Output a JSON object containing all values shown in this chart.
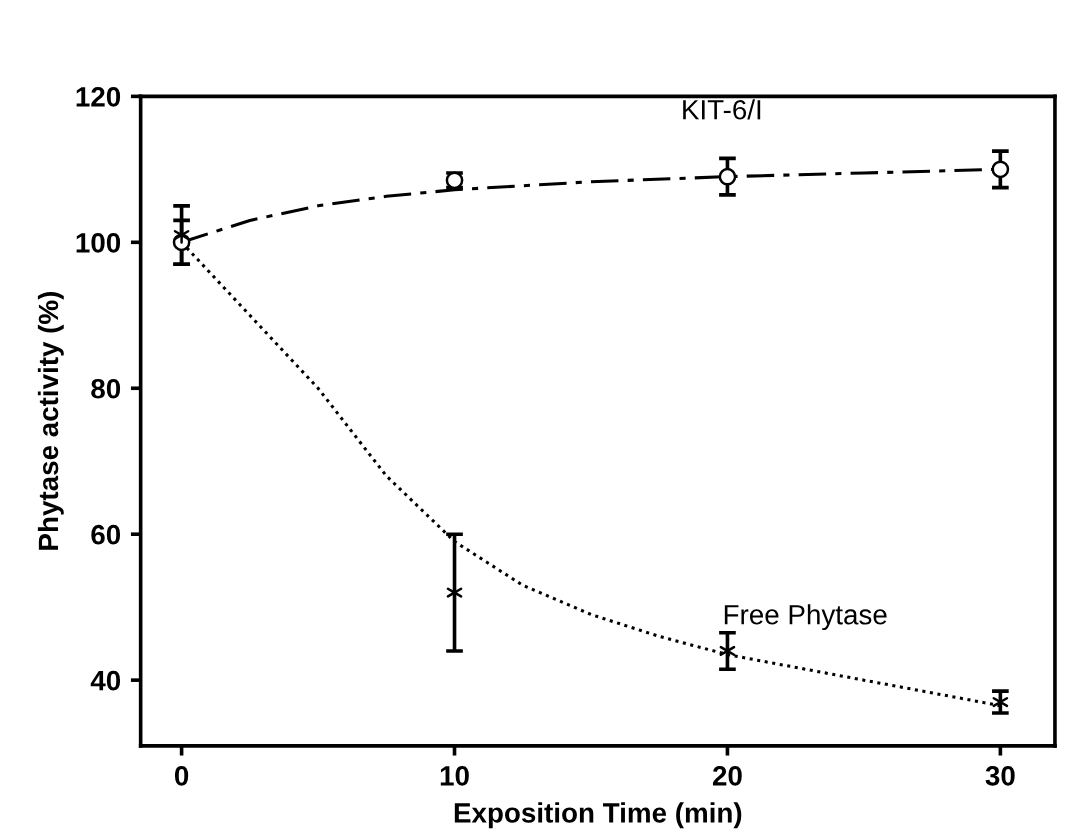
{
  "chart_data": {
    "type": "scatter",
    "xlabel": "Exposition Time (min)",
    "ylabel": "Phytase activity (%)",
    "xlim": [
      -1.5,
      32
    ],
    "ylim": [
      31,
      120
    ],
    "xticks": [
      0,
      10,
      20,
      30
    ],
    "yticks": [
      40,
      60,
      80,
      100,
      120
    ],
    "grid": false,
    "legend": false,
    "series": [
      {
        "name": "KIT-6/I",
        "color": "#000000",
        "marker": "circle",
        "x": [
          0,
          10,
          20,
          30
        ],
        "values": [
          100,
          108.5,
          109,
          110
        ],
        "errors": [
          3,
          1,
          2.5,
          2.5
        ]
      },
      {
        "name": "Free Phytase",
        "color": "#000000",
        "marker": "cross",
        "x": [
          0,
          10,
          20,
          30
        ],
        "values": [
          101,
          52,
          44,
          37
        ],
        "errors": [
          4,
          8,
          2.5,
          1.5
        ]
      },
      {
        "type": "line",
        "color": "#000000",
        "line_style": "dashed",
        "marker": "none",
        "x": [
          0,
          2.5,
          5,
          7.5,
          10,
          15,
          20,
          25,
          30
        ],
        "values": [
          100,
          103,
          105,
          106.3,
          107.2,
          108.3,
          109,
          109.5,
          110
        ]
      },
      {
        "type": "line",
        "color": "#000000",
        "line_style": "dotted",
        "marker": "none",
        "x": [
          0,
          2.5,
          5,
          7.5,
          10,
          12.5,
          15,
          17.5,
          20,
          25,
          30
        ],
        "values": [
          100,
          90,
          80,
          68,
          59,
          53,
          49,
          46,
          43.5,
          40,
          36.5
        ]
      }
    ]
  }
}
